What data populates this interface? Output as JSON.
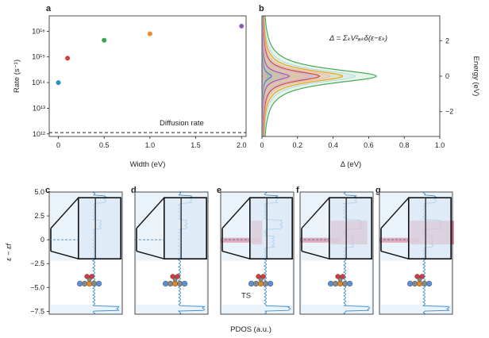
{
  "panels": {
    "a": "a",
    "b": "b",
    "c": "c",
    "d": "d",
    "e": "e",
    "f": "f",
    "g": "g"
  },
  "chart_data": [
    {
      "panel": "a",
      "type": "scatter",
      "xlabel": "Width (eV)",
      "ylabel": "Rate (s⁻¹)",
      "xlim": [
        -0.1,
        2.05
      ],
      "ylim_log10": [
        11.9,
        16.6
      ],
      "log_y": true,
      "xticks": [
        "0",
        "0.5",
        "1.0",
        "1.5",
        "2.0"
      ],
      "yticks": [
        "10¹²",
        "10¹³",
        "10¹⁴",
        "10¹⁵",
        "10¹⁶"
      ],
      "points": [
        {
          "x": 0.0,
          "y_log10": 14.0,
          "color": "#2a8fbf"
        },
        {
          "x": 0.1,
          "y_log10": 14.95,
          "color": "#d63a3a"
        },
        {
          "x": 0.5,
          "y_log10": 15.65,
          "color": "#3aa54a"
        },
        {
          "x": 1.0,
          "y_log10": 15.9,
          "color": "#f08a2a"
        },
        {
          "x": 2.0,
          "y_log10": 16.2,
          "color": "#8a5bbf"
        }
      ],
      "reference_line": {
        "y_log10": 12.05,
        "style": "dashed",
        "label": "Diffusion rate"
      }
    },
    {
      "panel": "b",
      "type": "line",
      "xlabel": "Δ (eV)",
      "ylabel": "Energy (eV)",
      "xlim": [
        0,
        1.0
      ],
      "ylim": [
        -3.4,
        3.4
      ],
      "xticks": [
        "0",
        "0.2",
        "0.4",
        "0.6",
        "0.8",
        "1.0"
      ],
      "yticks": [
        "2",
        "0",
        "−2"
      ],
      "annotation": "Δ = ΣₖV²ₐₖδ(ε−εₖ)",
      "curves": [
        {
          "peak": 0.05,
          "color": "#2a8fbf"
        },
        {
          "peak": 0.15,
          "color": "#8a5bbf"
        },
        {
          "peak": 0.32,
          "color": "#d63a3a"
        },
        {
          "peak": 0.45,
          "color": "#f0a000"
        },
        {
          "peak": 0.64,
          "color": "#3aa54a"
        }
      ]
    },
    {
      "panel": "c-g",
      "type": "pdos",
      "xlabel": "PDOS (a.u.)",
      "ylabel": "ε − εf",
      "ylim": [
        -7.8,
        5.0
      ],
      "yticks": [
        "5.0",
        "2.5",
        "0",
        "−2.5",
        "−5.0",
        "−7.5"
      ],
      "ts_label": "TS"
    }
  ]
}
